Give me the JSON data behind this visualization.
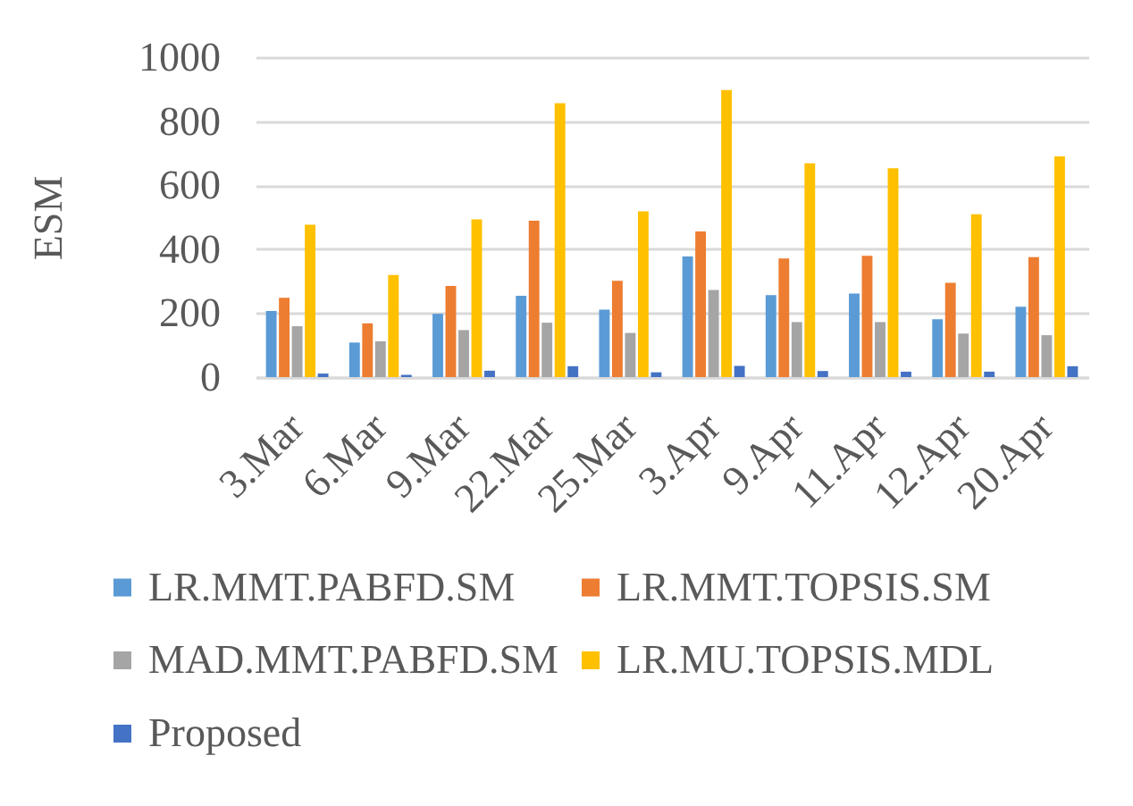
{
  "chart_data": {
    "type": "bar",
    "ylabel": "ESM",
    "categories": [
      "3.Mar",
      "6.Mar",
      "9.Mar",
      "22.Mar",
      "25.Mar",
      "3.Apr",
      "9.Apr",
      "11.Apr",
      "12.Apr",
      "20.Apr"
    ],
    "series": [
      {
        "name": "LR.MMT.PABFD.SM",
        "color": "#5b9bd5",
        "values": [
          207,
          108,
          198,
          254,
          211,
          377,
          256,
          261,
          181,
          220
        ]
      },
      {
        "name": "LR.MMT.TOPSIS.SM",
        "color": "#ed7d31",
        "values": [
          248,
          168,
          285,
          489,
          301,
          455,
          371,
          379,
          295,
          375
        ]
      },
      {
        "name": "MAD.MMT.PABFD.SM",
        "color": "#a5a5a5",
        "values": [
          159,
          112,
          147,
          170,
          138,
          272,
          172,
          172,
          136,
          131
        ]
      },
      {
        "name": "LR.MU.TOPSIS.MDL",
        "color": "#ffc000",
        "values": [
          476,
          319,
          493,
          856,
          518,
          897,
          668,
          653,
          509,
          690
        ]
      },
      {
        "name": "Proposed",
        "color": "#4472c4",
        "values": [
          11,
          7,
          20,
          34,
          15,
          35,
          19,
          17,
          17,
          34
        ]
      }
    ],
    "ylim": [
      0,
      1000
    ],
    "yticks": [
      0,
      200,
      400,
      600,
      800,
      1000
    ],
    "grid": "y",
    "legend": "bottom"
  }
}
